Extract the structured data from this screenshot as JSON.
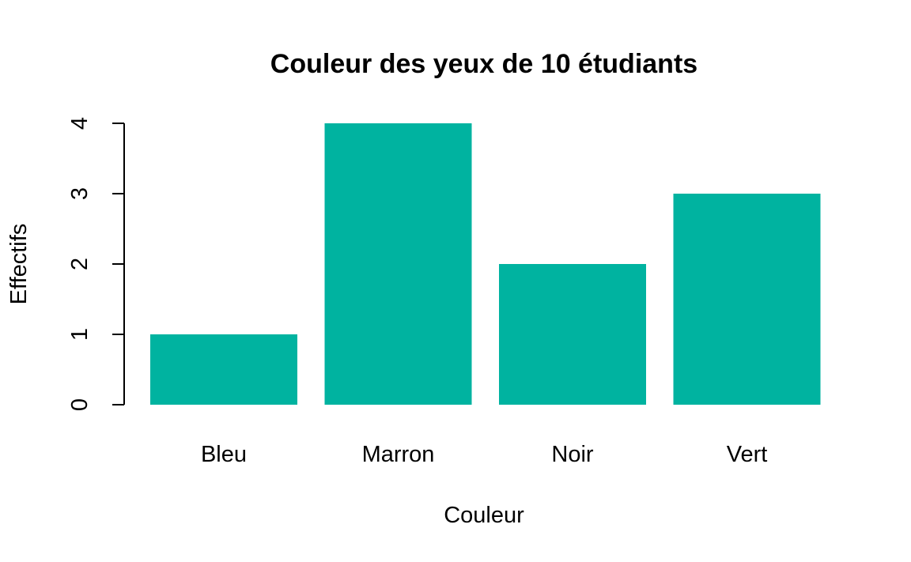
{
  "chart_data": {
    "type": "bar",
    "title": "Couleur des yeux de 10 étudiants",
    "xlabel": "Couleur",
    "ylabel": "Effectifs",
    "categories": [
      "Bleu",
      "Marron",
      "Noir",
      "Vert"
    ],
    "values": [
      1,
      4,
      2,
      3
    ],
    "ylim": [
      0,
      4
    ],
    "yticks": [
      "0",
      "1",
      "2",
      "3",
      "4"
    ],
    "bar_color": "#00B3A0",
    "grid": false,
    "legend": "none"
  }
}
